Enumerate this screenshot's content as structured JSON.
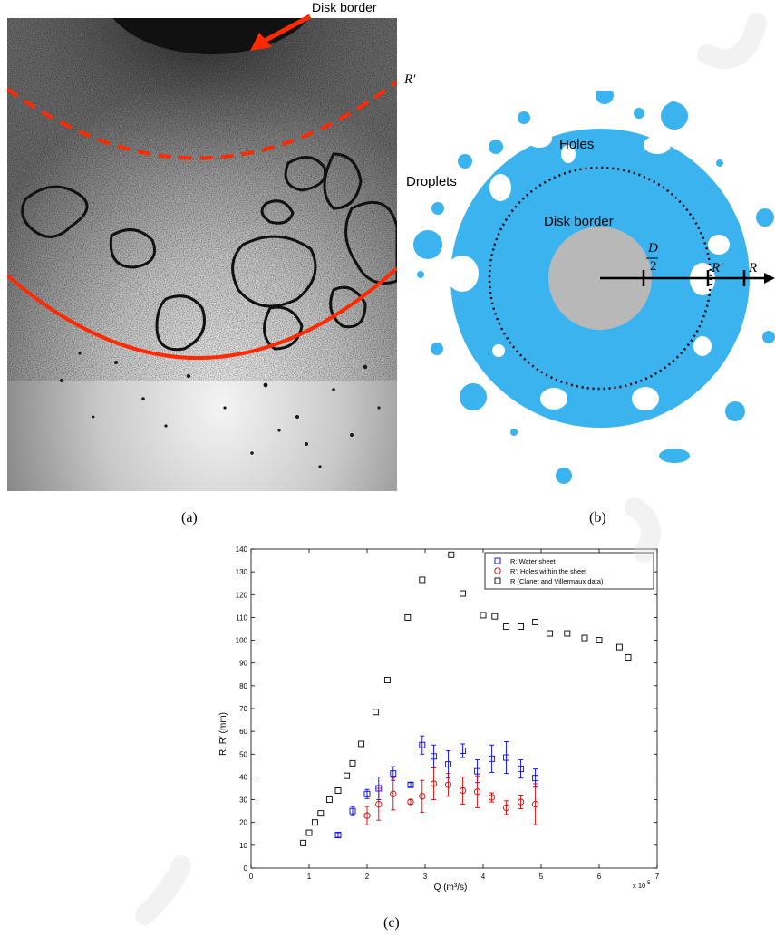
{
  "panel_a": {
    "label_disk_border": "Disk border",
    "label_r_prime": "R′",
    "caption": "(a)"
  },
  "panel_b": {
    "label_holes": "Holes",
    "label_droplets": "Droplets",
    "label_disk_border": "Disk border",
    "label_d": "D",
    "label_d_den": "2",
    "label_r_prime": "R′",
    "label_r": "R",
    "caption": "(b)",
    "colors": {
      "sheet": "#3bb3ee",
      "disk": "#b8b8b8",
      "arrow": "#000000"
    }
  },
  "panel_c": {
    "caption": "(c)",
    "colors": {
      "water": "#0000ff",
      "holes": "#dd0000",
      "clanet": "#000000",
      "annotation_line": "#ff2a00"
    }
  },
  "chart_data": {
    "type": "scatter",
    "xlabel": "Q (m³/s)",
    "ylabel": "R, R′ (mm)",
    "x_multiplier": "x 10",
    "x_multiplier_exp": "-5",
    "xlim": [
      0,
      7
    ],
    "ylim": [
      0,
      140
    ],
    "xticks": [
      "0",
      "1",
      "2",
      "3",
      "4",
      "5",
      "6",
      "7"
    ],
    "yticks": [
      "0",
      "10",
      "20",
      "30",
      "40",
      "50",
      "60",
      "70",
      "80",
      "90",
      "100",
      "110",
      "120",
      "130",
      "140"
    ],
    "grid": false,
    "legend_position": "top-right",
    "series": [
      {
        "name": "R: Water sheet",
        "marker": "square",
        "color": "#0000ff",
        "x": [
          1.5,
          1.75,
          2.0,
          2.2,
          2.45,
          2.75,
          2.95,
          3.15,
          3.4,
          3.65,
          3.9,
          4.15,
          4.4,
          4.65,
          4.9
        ],
        "y": [
          14.5,
          25,
          32.5,
          35,
          41.5,
          36.5,
          54,
          49,
          45.5,
          51.5,
          42.5,
          48,
          48.5,
          43.5,
          39.5
        ],
        "err": [
          1,
          2,
          2,
          5,
          3,
          1,
          4,
          5,
          6,
          3,
          5,
          6,
          7,
          4,
          4
        ]
      },
      {
        "name": "R′: Holes within the sheet",
        "marker": "circle",
        "color": "#dd0000",
        "x": [
          2.0,
          2.2,
          2.45,
          2.75,
          2.95,
          3.15,
          3.4,
          3.65,
          3.9,
          4.15,
          4.4,
          4.65,
          4.9
        ],
        "y": [
          23,
          28,
          32.5,
          29,
          31.5,
          37,
          36.5,
          34,
          33.5,
          31,
          26.5,
          29,
          28
        ],
        "err": [
          4,
          7,
          7,
          1,
          7,
          7,
          5,
          6,
          7,
          2,
          3,
          3,
          9
        ]
      },
      {
        "name": "R (Clanet and Villermaux data)",
        "marker": "square",
        "color": "#000000",
        "x": [
          0.9,
          1.0,
          1.1,
          1.2,
          1.35,
          1.5,
          1.65,
          1.75,
          1.9,
          2.15,
          2.35,
          2.7,
          2.95,
          3.45,
          3.65,
          4.0,
          4.2,
          4.4,
          4.65,
          4.9,
          5.15,
          5.45,
          5.75,
          6.0,
          6.35,
          6.5
        ],
        "y": [
          11,
          15.5,
          20,
          24,
          30,
          34,
          40.5,
          46,
          54.5,
          68.5,
          82.5,
          110,
          126.5,
          137.5,
          120.5,
          111,
          110.5,
          106,
          106,
          108,
          103,
          103,
          101,
          100,
          97,
          92.5
        ]
      }
    ]
  }
}
